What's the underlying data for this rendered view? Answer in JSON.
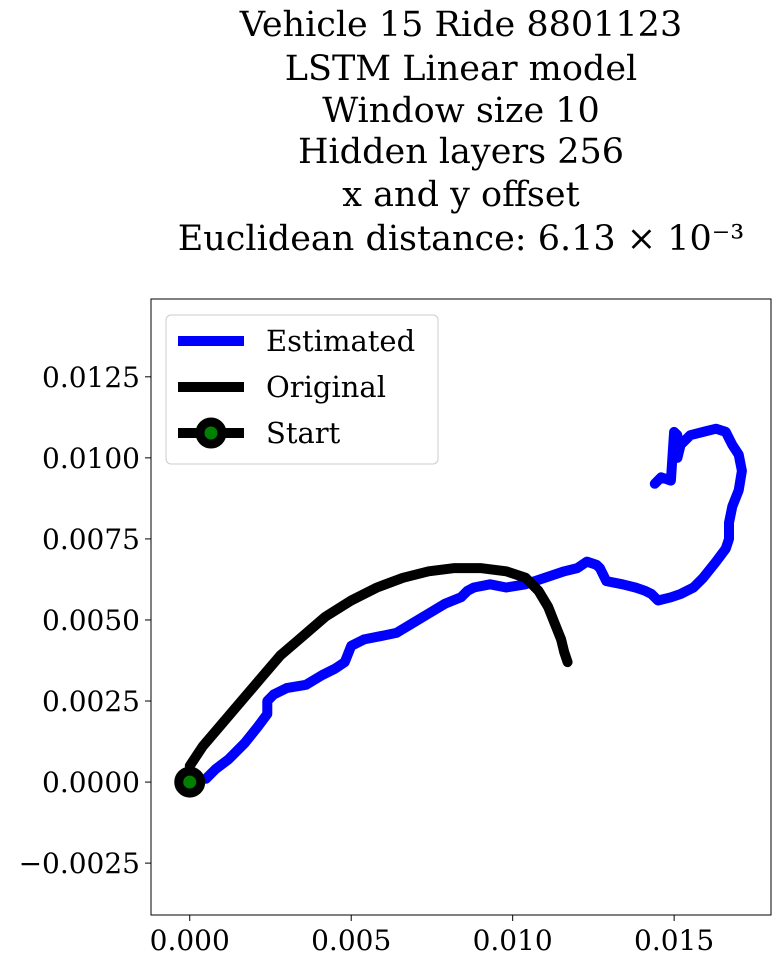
{
  "chart_data": {
    "type": "line",
    "title_lines": [
      "Vehicle 15 Ride 8801123",
      "LSTM Linear model",
      "Window size 10",
      "Hidden layers 256",
      "x and y offset",
      "Euclidean distance: 6.13 × 10⁻³"
    ],
    "xlabel": "",
    "ylabel": "",
    "xlim": [
      -0.0012,
      0.018
    ],
    "ylim": [
      -0.0041,
      0.0149
    ],
    "xticks": [
      0.0,
      0.005,
      0.01,
      0.015
    ],
    "xtick_labels": [
      "0.000",
      "0.005",
      "0.010",
      "0.015"
    ],
    "yticks": [
      -0.0025,
      0.0,
      0.0025,
      0.005,
      0.0075,
      0.01,
      0.0125
    ],
    "ytick_labels": [
      "−0.0025",
      "0.0000",
      "0.0025",
      "0.0050",
      "0.0075",
      "0.0100",
      "0.0125"
    ],
    "grid": false,
    "legend_position": "top-left",
    "series": [
      {
        "name": "Estimated",
        "color": "#0000ff",
        "x": [
          0.0005,
          0.0008,
          0.0012,
          0.0017,
          0.0021,
          0.0024,
          0.0024,
          0.0026,
          0.003,
          0.0036,
          0.0041,
          0.0045,
          0.0048,
          0.005,
          0.0054,
          0.0059,
          0.0064,
          0.0069,
          0.0074,
          0.0079,
          0.0084,
          0.0086,
          0.0086,
          0.0088,
          0.0093,
          0.0098,
          0.0104,
          0.011,
          0.0116,
          0.012,
          0.0123,
          0.0126,
          0.0127,
          0.0129,
          0.0134,
          0.0138,
          0.0141,
          0.0143,
          0.0145,
          0.0149,
          0.0152,
          0.0156,
          0.0159,
          0.0163,
          0.0166,
          0.0167,
          0.0167,
          0.0168,
          0.017,
          0.0171,
          0.017,
          0.0168,
          0.0167,
          0.0166,
          0.0163,
          0.0159,
          0.0155,
          0.0152,
          0.0151,
          0.0151,
          0.0151,
          0.015,
          0.0149,
          0.0146,
          0.0144
        ],
        "y": [
          0.0001,
          0.0004,
          0.0007,
          0.0012,
          0.0017,
          0.0021,
          0.0025,
          0.0027,
          0.0029,
          0.003,
          0.0033,
          0.0035,
          0.0037,
          0.0042,
          0.0044,
          0.0045,
          0.0046,
          0.0049,
          0.0052,
          0.0055,
          0.0057,
          0.0059,
          0.0059,
          0.006,
          0.0061,
          0.006,
          0.0061,
          0.0063,
          0.0065,
          0.0066,
          0.0068,
          0.0067,
          0.0066,
          0.0062,
          0.0061,
          0.006,
          0.0059,
          0.0058,
          0.0056,
          0.0057,
          0.0058,
          0.006,
          0.0063,
          0.0068,
          0.0072,
          0.0075,
          0.008,
          0.0085,
          0.009,
          0.0096,
          0.0101,
          0.0104,
          0.0106,
          0.0108,
          0.0109,
          0.0108,
          0.0107,
          0.0104,
          0.01,
          0.0103,
          0.0107,
          0.0108,
          0.0093,
          0.0094,
          0.0092
        ]
      },
      {
        "name": "Original",
        "color": "#000000",
        "x": [
          0.0,
          0.0004,
          0.001,
          0.0016,
          0.0022,
          0.0028,
          0.0035,
          0.0042,
          0.005,
          0.0058,
          0.0066,
          0.0074,
          0.0082,
          0.009,
          0.0098,
          0.0104,
          0.0108,
          0.0111,
          0.0113,
          0.0115,
          0.0116,
          0.0117
        ],
        "y": [
          0.0005,
          0.0011,
          0.0018,
          0.0025,
          0.0032,
          0.0039,
          0.0045,
          0.0051,
          0.0056,
          0.006,
          0.0063,
          0.0065,
          0.0066,
          0.0066,
          0.0065,
          0.0063,
          0.0059,
          0.0054,
          0.0049,
          0.0044,
          0.004,
          0.0037
        ]
      },
      {
        "name": "Start",
        "color": "#000000",
        "marker_face": "#008000",
        "x": [
          0.0
        ],
        "y": [
          0.0
        ]
      }
    ]
  }
}
